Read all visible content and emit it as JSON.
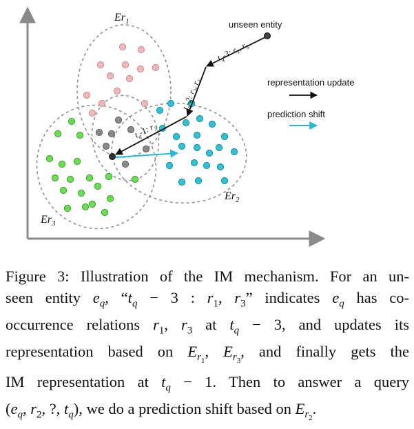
{
  "diagram": {
    "labels": {
      "cluster_r1": "Er",
      "cluster_r1_sub": "1",
      "cluster_r2": "Er",
      "cluster_r2_sub": "2",
      "cluster_r3": "Er",
      "cluster_r3_sub": "3",
      "unseen_entity": "unseen entity",
      "step1": "t",
      "step1_sub": "q",
      "step1_rest": "-3: r",
      "step1_r1": "1",
      "step1_mid": ", r",
      "step1_r3": "3",
      "step2": "t",
      "step2_sub": "q",
      "step2_rest": "-2: r",
      "step2_r2": "2",
      "step2_mid": ", r",
      "step2_r3": "3",
      "step3": "t",
      "step3_sub": "q",
      "step3_rest": "-1: r",
      "step3_r3": "3"
    },
    "legend": {
      "representation_update": "representation update",
      "prediction_shift": "prediction shift"
    },
    "colors": {
      "pink": "#f4b7b9",
      "gray": "#8a8a8a",
      "green": "#69e04d",
      "cyan": "#2cc3d6",
      "arrow_black": "#111111",
      "arrow_cyan": "#2ab8d8",
      "dashed": "#8f8f8f",
      "axis": "#8a8a8a"
    }
  },
  "caption": {
    "lines": [
      "Figure 3: Illustration of the IM mechanism. For an un-",
      "seen entity",
      "occurrence relations",
      "representation based on",
      "IM representation at",
      ""
    ],
    "line1": "Figure 3: Illustration of the IM mechanism. For an un-",
    "line2_a": "seen entity ",
    "line2_b": ", “",
    "line2_c": "” indicates ",
    "line2_d": " has co-",
    "line3_a": "occurrence relations ",
    "line3_b": " at ",
    "line3_c": ", and updates its",
    "line4_a": "representation based on ",
    "line4_b": ", and finally gets the",
    "line5_a": "IM representation at ",
    "line5_b": ".  Then to answer a query",
    "line6_a": ", we do a prediction shift based on ",
    "line6_b": "."
  }
}
